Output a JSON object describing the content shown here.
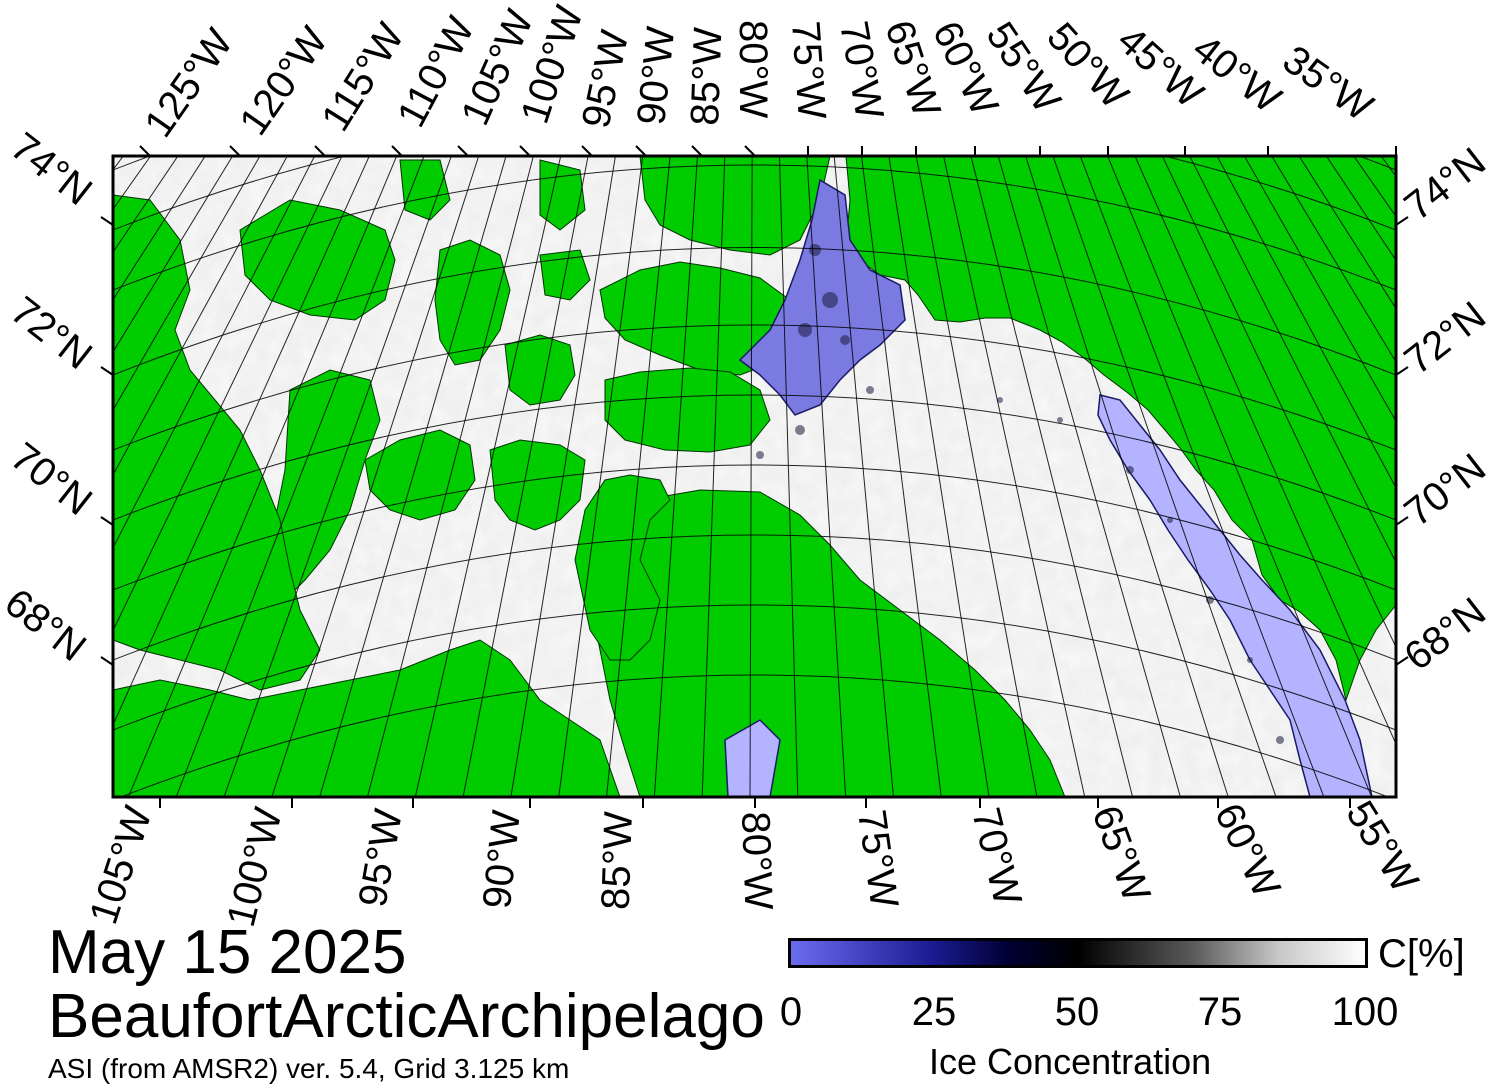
{
  "map": {
    "date": "May 15 2025",
    "region": "BeaufortArcticArchipelago",
    "source": "ASI (from AMSR2) ver. 5.4,  Grid 3.125 km",
    "colors": {
      "land": "#00cc00",
      "open_water_low": "#b3b3ff",
      "ice_mid": "#000033",
      "ice_full": "#ffffff"
    },
    "top_lon_labels": [
      "125°W",
      "120°W",
      "115°W",
      "110°W",
      "105°W",
      "100°W",
      "95°W",
      "90°W",
      "85°W",
      "80°W",
      "75°W",
      "70°W",
      "65°W",
      "60°W",
      "55°W",
      "50°W",
      "45°W",
      "40°W",
      "35°W"
    ],
    "bottom_lon_labels": [
      "105°W",
      "100°W",
      "95°W",
      "90°W",
      "85°W",
      "80°W",
      "75°W",
      "70°W",
      "65°W",
      "60°W",
      "55°W"
    ],
    "left_lat_labels": [
      "74°N",
      "72°N",
      "70°N",
      "68°N"
    ],
    "right_lat_labels": [
      "74°N",
      "72°N",
      "70°N",
      "68°N"
    ]
  },
  "colorbar": {
    "unit": "C[%]",
    "title": "Ice Concentration",
    "ticks": [
      "0",
      "25",
      "50",
      "75",
      "100"
    ]
  }
}
